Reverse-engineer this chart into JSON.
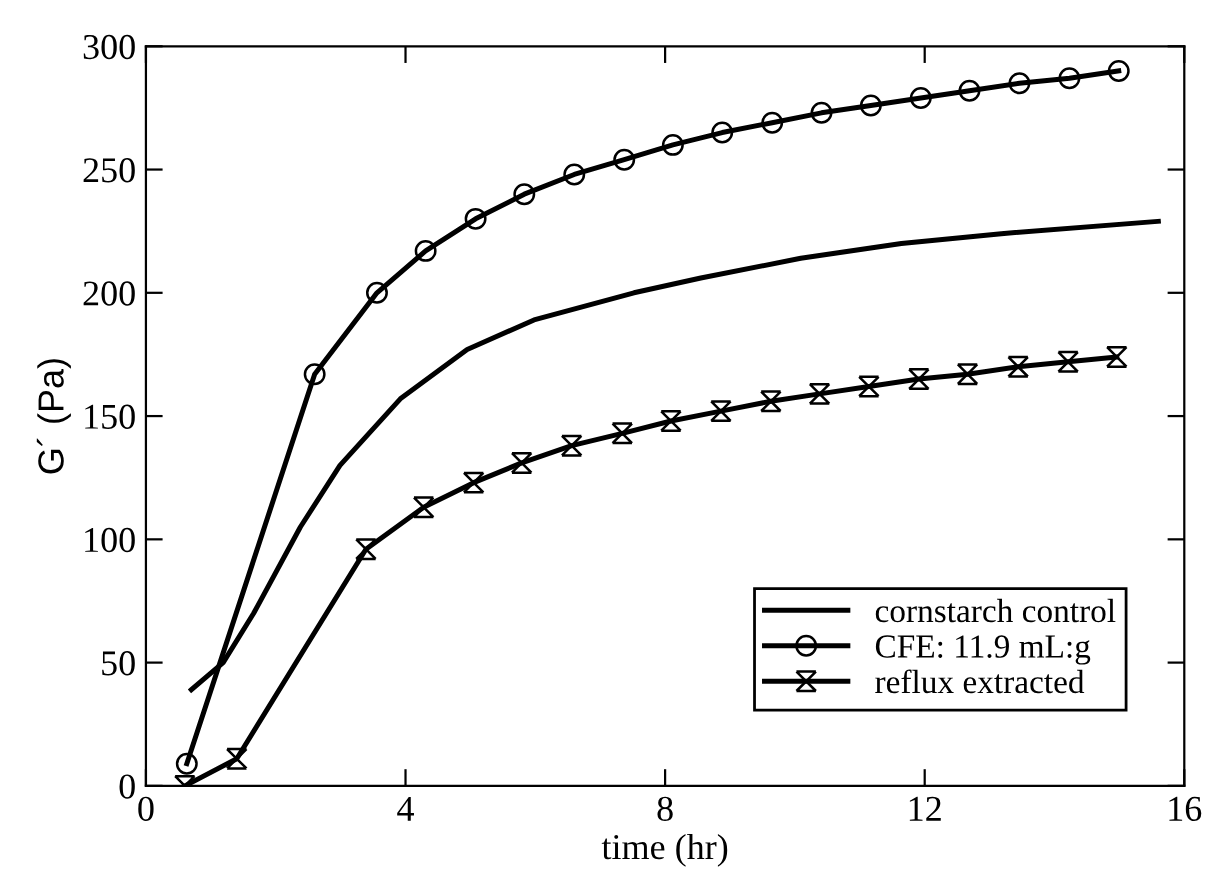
{
  "chart_data": {
    "type": "line",
    "xlabel": "time (hr)",
    "ylabel": "G´ (Pa)",
    "xlim": [
      0,
      16
    ],
    "ylim": [
      0,
      300
    ],
    "xticks": [
      0,
      4,
      8,
      12,
      16
    ],
    "yticks": [
      0,
      50,
      100,
      150,
      200,
      250,
      300
    ],
    "grid": false,
    "legend": "bottom right",
    "line_style": "solid",
    "series": [
      {
        "name": "cornstarch control",
        "color": "#000000",
        "marker": "none",
        "x": [
          0.7,
          1.19,
          1.66,
          2.38,
          2.99,
          3.92,
          4.95,
          5.98,
          7.52,
          8.55,
          10.09,
          11.64,
          13.18,
          15.6
        ],
        "values": [
          39,
          50,
          70,
          105,
          130,
          157,
          177,
          189,
          200,
          206,
          214,
          220,
          224,
          229
        ]
      },
      {
        "name": "CFE: 11.9 mL:g",
        "color": "#000000",
        "marker": "circle",
        "x": [
          0.63,
          2.6,
          3.56,
          4.31,
          5.08,
          5.83,
          6.6,
          7.37,
          8.12,
          8.88,
          9.65,
          10.41,
          11.17,
          11.94,
          12.69,
          13.46,
          14.23,
          14.99
        ],
        "values": [
          9,
          167,
          200,
          217,
          230,
          240,
          248,
          254,
          260,
          265,
          269,
          273,
          276,
          279,
          282,
          285,
          287,
          290
        ]
      },
      {
        "name": "reflux extracted",
        "color": "#000000",
        "marker": "cross",
        "x": [
          0.6,
          1.4,
          3.39,
          4.28,
          5.05,
          5.79,
          6.56,
          7.34,
          8.09,
          8.86,
          9.63,
          10.38,
          11.14,
          11.91,
          12.66,
          13.44,
          14.21,
          14.96
        ],
        "values": [
          0,
          11,
          96,
          113,
          123,
          131,
          138,
          143,
          148,
          152,
          156,
          159,
          162,
          165,
          167,
          170,
          172,
          174
        ]
      }
    ]
  }
}
